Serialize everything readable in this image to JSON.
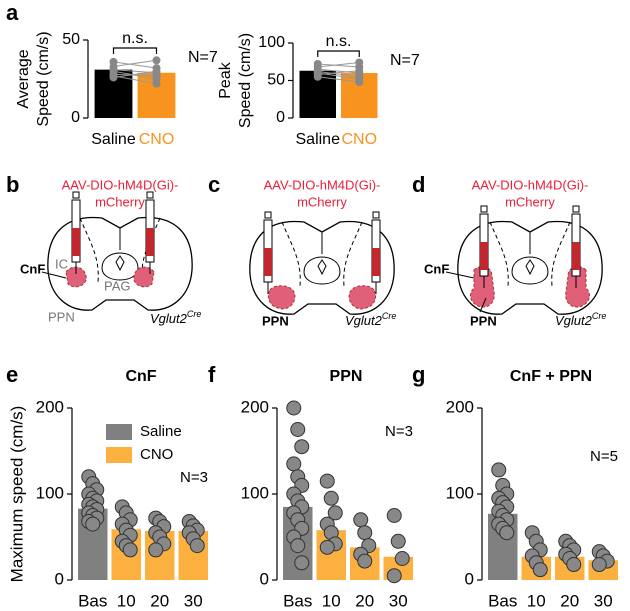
{
  "chart_data": [
    {
      "type": "paired_bar",
      "letter": "a",
      "ylabel": [
        "Average",
        "Speed (cm/s)"
      ],
      "categories": [
        "Saline",
        "CNO"
      ],
      "values": [
        31,
        29
      ],
      "colors": [
        "#000000",
        "#f7931e"
      ],
      "ylim": [
        0,
        50
      ],
      "yticks": [
        0,
        50
      ],
      "significance": "n.s.",
      "n_label": "N=7",
      "pairs": [
        [
          36,
          32
        ],
        [
          33,
          37
        ],
        [
          31,
          29
        ],
        [
          30,
          25
        ],
        [
          28,
          27
        ],
        [
          27,
          22
        ],
        [
          26,
          30
        ]
      ]
    },
    {
      "type": "paired_bar",
      "ylabel": [
        "Peak",
        "Speed (cm/s)"
      ],
      "categories": [
        "Saline",
        "CNO"
      ],
      "values": [
        63,
        60
      ],
      "colors": [
        "#000000",
        "#f7931e"
      ],
      "ylim": [
        0,
        100
      ],
      "yticks": [
        0,
        50,
        100
      ],
      "significance": "n.s.",
      "n_label": "N=7",
      "pairs": [
        [
          72,
          68
        ],
        [
          68,
          74
        ],
        [
          65,
          60
        ],
        [
          62,
          55
        ],
        [
          60,
          52
        ],
        [
          58,
          63
        ],
        [
          55,
          48
        ]
      ]
    },
    {
      "type": "dot_bar",
      "letter": "e",
      "title": "CnF",
      "ylabel": "Maximum speed (cm/s)",
      "categories": [
        "Bas",
        "10",
        "20",
        "30"
      ],
      "values": [
        83,
        59,
        57,
        57
      ],
      "colors": [
        "#808080",
        "#fbb040",
        "#fbb040",
        "#fbb040"
      ],
      "ylim": [
        0,
        200
      ],
      "yticks": [
        0,
        100,
        200
      ],
      "n_label": "N=3",
      "legend": [
        {
          "name": "Saline",
          "color": "#808080"
        },
        {
          "name": "CNO",
          "color": "#fbb040"
        }
      ],
      "points": [
        [
          120,
          112,
          105,
          100,
          95,
          92,
          88,
          85,
          82,
          78,
          75,
          72,
          68,
          65
        ],
        [
          85,
          78,
          70,
          65,
          58,
          52,
          45,
          40,
          35
        ],
        [
          72,
          68,
          62,
          55,
          50,
          42,
          35
        ],
        [
          68,
          63,
          58,
          55,
          48,
          40
        ]
      ]
    },
    {
      "type": "dot_bar",
      "letter": "f",
      "title": "PPN",
      "categories": [
        "Bas",
        "10",
        "20",
        "30"
      ],
      "values": [
        85,
        58,
        38,
        27
      ],
      "colors": [
        "#808080",
        "#fbb040",
        "#fbb040",
        "#fbb040"
      ],
      "ylim": [
        0,
        200
      ],
      "yticks": [
        0,
        100,
        200
      ],
      "n_label": "N=3",
      "points": [
        [
          200,
          175,
          155,
          135,
          120,
          110,
          100,
          92,
          85,
          78,
          70,
          60,
          50,
          40,
          20
        ],
        [
          115,
          95,
          78,
          65,
          55,
          42,
          38
        ],
        [
          70,
          55,
          40,
          30,
          22
        ],
        [
          75,
          45,
          25,
          5
        ]
      ]
    },
    {
      "type": "dot_bar",
      "letter": "g",
      "title": "CnF + PPN",
      "categories": [
        "Bas",
        "10",
        "20",
        "30"
      ],
      "values": [
        77,
        27,
        27,
        23
      ],
      "colors": [
        "#808080",
        "#fbb040",
        "#fbb040",
        "#fbb040"
      ],
      "ylim": [
        0,
        200
      ],
      "yticks": [
        0,
        100,
        200
      ],
      "n_label": "N=5",
      "points": [
        [
          128,
          110,
          100,
          95,
          90,
          85,
          80,
          75,
          70,
          65,
          60,
          55
        ],
        [
          55,
          45,
          35,
          28,
          20,
          12
        ],
        [
          45,
          40,
          35,
          30,
          25,
          18
        ],
        [
          33,
          28,
          22,
          18
        ]
      ]
    }
  ],
  "diagrams": [
    {
      "letter": "b",
      "title": [
        "AAV-DIO-hM4D(Gi)-",
        "mCherry"
      ],
      "labels": [
        "CnF",
        "IC",
        "PAG",
        "PPN"
      ],
      "mouse": {
        "gene": "Vglut2",
        "superscript": "Cre"
      }
    },
    {
      "letter": "c",
      "title": [
        "AAV-DIO-hM4D(Gi)-",
        "mCherry"
      ],
      "labels": [
        "PPN"
      ],
      "mouse": {
        "gene": "Vglut2",
        "superscript": "Cre"
      }
    },
    {
      "letter": "d",
      "title": [
        "AAV-DIO-hM4D(Gi)-",
        "mCherry"
      ],
      "labels": [
        "CnF",
        "PPN"
      ],
      "mouse": {
        "gene": "Vglut2",
        "superscript": "Cre"
      }
    }
  ]
}
